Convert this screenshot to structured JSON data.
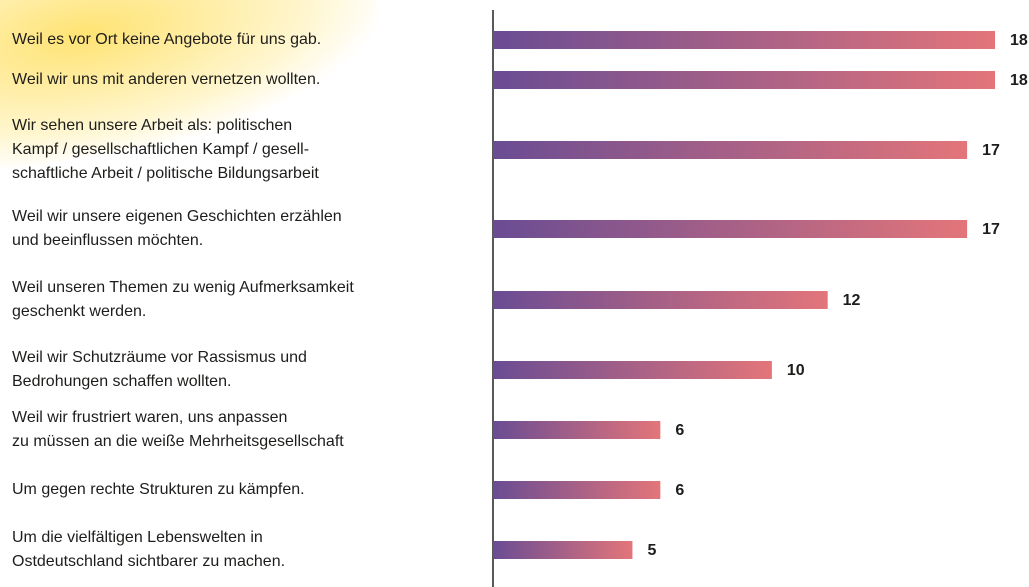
{
  "chart_data": {
    "type": "bar",
    "orientation": "horizontal",
    "categories": [
      [
        "Weil es vor Ort keine Angebote für uns gab."
      ],
      [
        "Weil wir uns mit anderen vernetzen wollten."
      ],
      [
        "Wir sehen unsere Arbeit als: politischen",
        "Kampf / gesellschaftlichen Kampf / gesell-",
        "schaftliche Arbeit / politische Bildungsarbeit"
      ],
      [
        "Weil wir unsere eigenen Geschichten erzählen",
        "und beeinflussen möchten."
      ],
      [
        "Weil unseren Themen zu wenig Aufmerksamkeit",
        "geschenkt werden."
      ],
      [
        "Weil wir Schutzräume vor Rassismus und",
        "Bedrohungen schaffen wollten."
      ],
      [
        "Weil wir frustriert waren, uns anpassen",
        "zu müssen an die weiße Mehrheitsgesellschaft"
      ],
      [
        "Um gegen rechte Strukturen zu kämpfen."
      ],
      [
        "Um die vielfältigen Lebenswelten in",
        "Ostdeutschland sichtbarer zu machen."
      ]
    ],
    "values": [
      18,
      18,
      17,
      17,
      12,
      10,
      6,
      6,
      5
    ],
    "colors": [
      "#6a4c93",
      "#e3757a"
    ]
  }
}
